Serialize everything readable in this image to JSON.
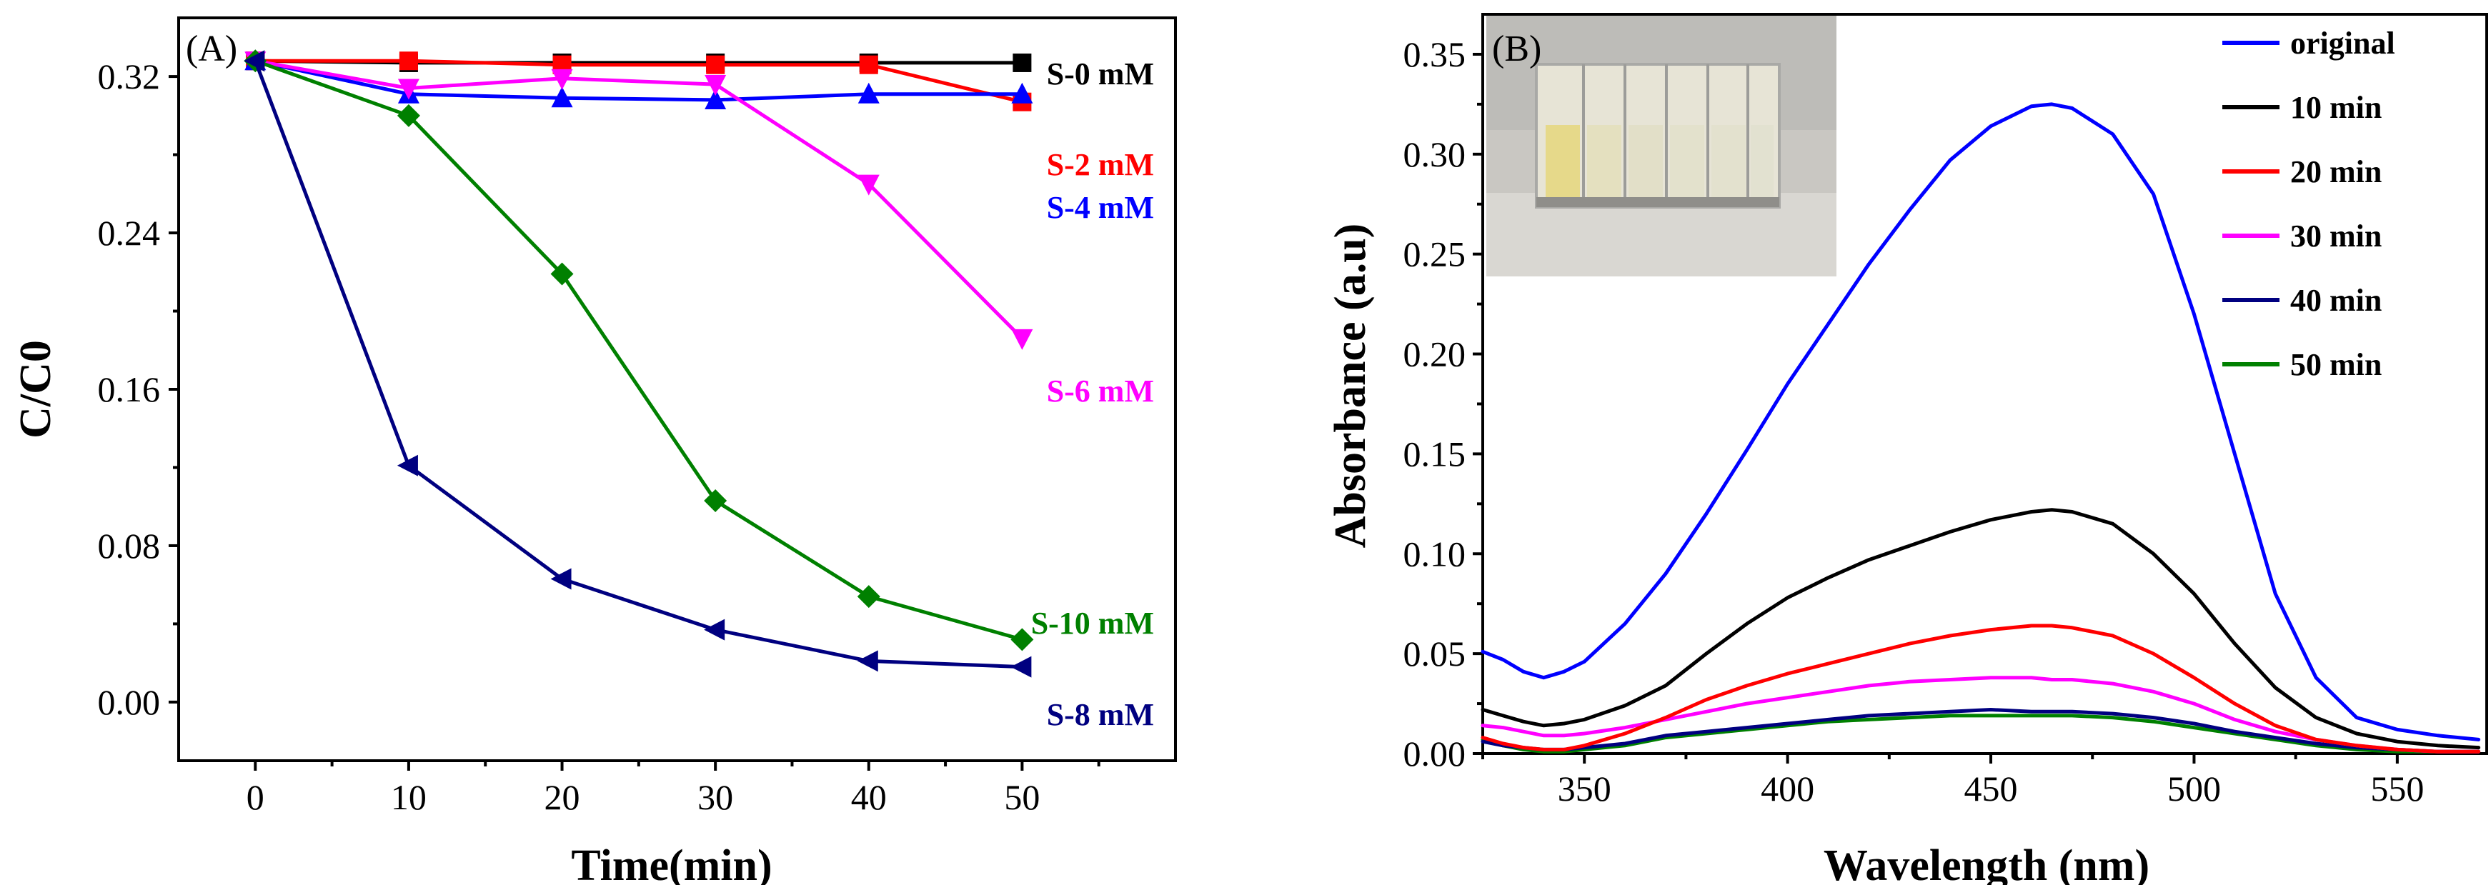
{
  "chart_data": [
    {
      "panel": "(A)",
      "type": "line",
      "title": "",
      "xlabel": "Time(min)",
      "ylabel": "C/C0",
      "xlim": [
        -5,
        60
      ],
      "ylim": [
        -0.03,
        0.35
      ],
      "x": [
        0,
        10,
        20,
        30,
        40,
        50
      ],
      "xticks": [
        "0",
        "10",
        "20",
        "30",
        "40",
        "50"
      ],
      "yticks": [
        "0.00",
        "0.08",
        "0.16",
        "0.24",
        "0.32"
      ],
      "series": [
        {
          "name": "S-0 mM",
          "color": "#000000",
          "marker": "square",
          "values": [
            0.328,
            0.327,
            0.327,
            0.327,
            0.327,
            0.327
          ]
        },
        {
          "name": "S-2 mM",
          "color": "#ff0000",
          "marker": "square",
          "values": [
            0.328,
            0.328,
            0.326,
            0.326,
            0.326,
            0.307
          ]
        },
        {
          "name": "S-4 mM",
          "color": "#0000ff",
          "marker": "triangle-up",
          "values": [
            0.328,
            0.311,
            0.309,
            0.308,
            0.311,
            0.311
          ]
        },
        {
          "name": "S-6 mM",
          "color": "#ff00ff",
          "marker": "triangle-down",
          "values": [
            0.328,
            0.314,
            0.319,
            0.316,
            0.265,
            0.186
          ]
        },
        {
          "name": "S-10 mM",
          "color": "#008000",
          "marker": "diamond",
          "values": [
            0.328,
            0.3,
            0.219,
            0.103,
            0.054,
            0.032
          ]
        },
        {
          "name": "S-8 mM",
          "color": "#000080",
          "marker": "triangle-left",
          "values": [
            0.328,
            0.121,
            0.063,
            0.037,
            0.021,
            0.018
          ]
        }
      ]
    },
    {
      "panel": "(B)",
      "type": "line",
      "title": "",
      "xlabel": "Wavelength (nm)",
      "ylabel": "Absorbance (a.u)",
      "xlim": [
        325,
        572
      ],
      "ylim": [
        0,
        0.37
      ],
      "xticks": [
        "350",
        "400",
        "450",
        "500",
        "550"
      ],
      "yticks": [
        "0.00",
        "0.05",
        "0.10",
        "0.15",
        "0.20",
        "0.25",
        "0.30",
        "0.35"
      ],
      "legend_position": "top-right",
      "inset": "photo of cuvettes showing decolorization",
      "series": [
        {
          "name": "original",
          "color": "#0000ff",
          "x": [
            325,
            330,
            335,
            340,
            345,
            350,
            360,
            370,
            380,
            390,
            400,
            410,
            420,
            430,
            440,
            450,
            460,
            465,
            470,
            480,
            490,
            500,
            510,
            520,
            530,
            540,
            550,
            560,
            570
          ],
          "values": [
            0.051,
            0.047,
            0.041,
            0.038,
            0.041,
            0.046,
            0.065,
            0.09,
            0.12,
            0.152,
            0.185,
            0.215,
            0.245,
            0.272,
            0.297,
            0.314,
            0.324,
            0.325,
            0.323,
            0.31,
            0.28,
            0.22,
            0.15,
            0.08,
            0.038,
            0.018,
            0.012,
            0.009,
            0.007
          ]
        },
        {
          "name": "10 min",
          "color": "#000000",
          "x": [
            325,
            330,
            335,
            340,
            345,
            350,
            360,
            370,
            380,
            390,
            400,
            410,
            420,
            430,
            440,
            450,
            460,
            465,
            470,
            480,
            490,
            500,
            510,
            520,
            530,
            540,
            550,
            560,
            570
          ],
          "values": [
            0.022,
            0.019,
            0.016,
            0.014,
            0.015,
            0.017,
            0.024,
            0.034,
            0.05,
            0.065,
            0.078,
            0.088,
            0.097,
            0.104,
            0.111,
            0.117,
            0.121,
            0.122,
            0.121,
            0.115,
            0.1,
            0.08,
            0.055,
            0.033,
            0.018,
            0.01,
            0.006,
            0.004,
            0.003
          ]
        },
        {
          "name": "20 min",
          "color": "#ff0000",
          "x": [
            325,
            330,
            335,
            340,
            345,
            350,
            360,
            370,
            380,
            390,
            400,
            410,
            420,
            430,
            440,
            450,
            460,
            465,
            470,
            480,
            490,
            500,
            510,
            520,
            530,
            540,
            550,
            560,
            570
          ],
          "values": [
            0.008,
            0.005,
            0.003,
            0.002,
            0.002,
            0.004,
            0.01,
            0.018,
            0.027,
            0.034,
            0.04,
            0.045,
            0.05,
            0.055,
            0.059,
            0.062,
            0.064,
            0.064,
            0.063,
            0.059,
            0.05,
            0.038,
            0.025,
            0.014,
            0.007,
            0.004,
            0.002,
            0.001,
            0.001
          ]
        },
        {
          "name": "30 min",
          "color": "#ff00ff",
          "x": [
            325,
            330,
            335,
            340,
            345,
            350,
            360,
            370,
            380,
            390,
            400,
            410,
            420,
            430,
            440,
            450,
            460,
            465,
            470,
            480,
            490,
            500,
            510,
            520,
            530,
            540,
            550,
            560,
            570
          ],
          "values": [
            0.014,
            0.013,
            0.011,
            0.009,
            0.009,
            0.01,
            0.013,
            0.017,
            0.021,
            0.025,
            0.028,
            0.031,
            0.034,
            0.036,
            0.037,
            0.038,
            0.038,
            0.037,
            0.037,
            0.035,
            0.031,
            0.025,
            0.017,
            0.011,
            0.007,
            0.004,
            0.002,
            0.001,
            0.001
          ]
        },
        {
          "name": "40 min",
          "color": "#000080",
          "x": [
            325,
            330,
            335,
            340,
            345,
            350,
            360,
            370,
            380,
            390,
            400,
            410,
            420,
            430,
            440,
            450,
            460,
            465,
            470,
            480,
            490,
            500,
            510,
            520,
            530,
            540,
            550,
            560,
            570
          ],
          "values": [
            0.006,
            0.004,
            0.003,
            0.002,
            0.002,
            0.003,
            0.005,
            0.009,
            0.011,
            0.013,
            0.015,
            0.017,
            0.019,
            0.02,
            0.021,
            0.022,
            0.021,
            0.021,
            0.021,
            0.02,
            0.018,
            0.015,
            0.011,
            0.008,
            0.005,
            0.003,
            0.002,
            0.001,
            0.001
          ]
        },
        {
          "name": "50 min",
          "color": "#008000",
          "x": [
            325,
            330,
            335,
            340,
            345,
            350,
            360,
            370,
            380,
            390,
            400,
            410,
            420,
            430,
            440,
            450,
            460,
            465,
            470,
            480,
            490,
            500,
            510,
            520,
            530,
            540,
            550,
            560,
            570
          ],
          "values": [
            0.007,
            0.004,
            0.002,
            0.001,
            0.001,
            0.002,
            0.004,
            0.008,
            0.01,
            0.012,
            0.014,
            0.016,
            0.017,
            0.018,
            0.019,
            0.019,
            0.019,
            0.019,
            0.019,
            0.018,
            0.016,
            0.013,
            0.01,
            0.007,
            0.004,
            0.002,
            0.001,
            0.001,
            0.001
          ]
        }
      ]
    }
  ]
}
